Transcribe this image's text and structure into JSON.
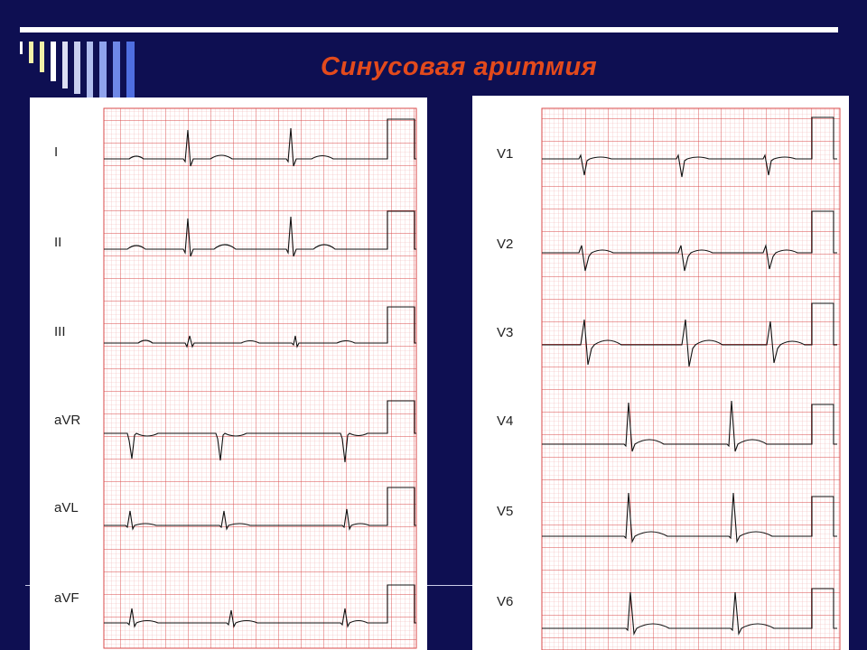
{
  "slide": {
    "title": "Синусовая аритмия"
  },
  "ecg": {
    "limb_leads": [
      "I",
      "II",
      "III",
      "aVR",
      "aVL",
      "aVF"
    ],
    "chest_leads": [
      "V1",
      "V2",
      "V3",
      "V4",
      "V5",
      "V6"
    ],
    "partial_header_text": "",
    "colors": {
      "background": "#0e0f52",
      "title": "#e34a1c",
      "grid_major": "#d94a4a",
      "grid_minor": "#f1b5b5",
      "trace": "#111111"
    }
  }
}
